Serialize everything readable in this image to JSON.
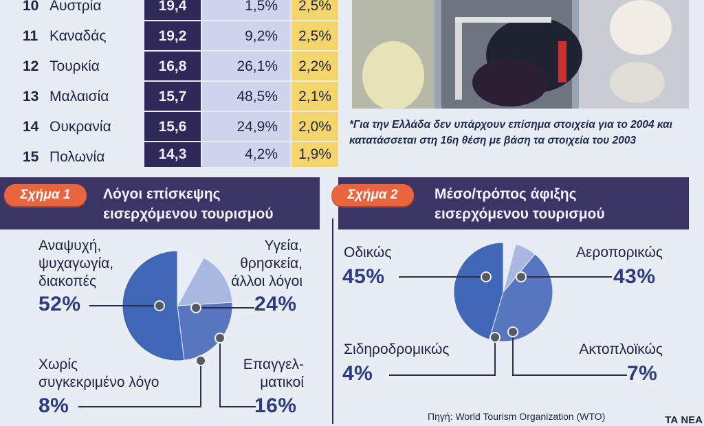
{
  "table": {
    "rows": [
      {
        "rank": "10",
        "country": "Αυστρία",
        "arrivals": "19,4",
        "change": "1,5%",
        "share": "2,5%"
      },
      {
        "rank": "11",
        "country": "Καναδάς",
        "arrivals": "19,2",
        "change": "9,2%",
        "share": "2,5%"
      },
      {
        "rank": "12",
        "country": "Τουρκία",
        "arrivals": "16,8",
        "change": "26,1%",
        "share": "2,2%"
      },
      {
        "rank": "13",
        "country": "Μαλαισία",
        "arrivals": "15,7",
        "change": "48,5%",
        "share": "2,1%"
      },
      {
        "rank": "14",
        "country": "Ουκρανία",
        "arrivals": "15,6",
        "change": "24,9%",
        "share": "2,0%"
      },
      {
        "rank": "15",
        "country": "Πολωνία",
        "arrivals": "14,3",
        "change": "4,2%",
        "share": "1,9%"
      }
    ],
    "colors": {
      "arrivals_bg": "#2d2a5a",
      "change_bg": "#cfd5ec",
      "share_bg": "#f4d56b"
    }
  },
  "photo_note": "*Για την Ελλάδα δεν υπάρχουν επίσημα στοιχεία για το 2004 και κατατάσσεται στη 16η θέση με βάση τα στοιχεία του 2003",
  "chart_data": [
    {
      "type": "pie",
      "badge": "Σχήμα 1",
      "title_line1": "Λόγοι επίσκεψης",
      "title_line2": "εισερχόμενου τουρισμού",
      "slices": [
        {
          "label_lines": [
            "Αναψυχή,",
            "ψυχαγωγία,",
            "διακοπές"
          ],
          "value": 52,
          "value_label": "52%",
          "color": "#3f67b6"
        },
        {
          "label_lines": [
            "Υγεία,",
            "θρησκεία,",
            "άλλοι λόγοι"
          ],
          "value": 24,
          "value_label": "24%",
          "color": "#5876c0"
        },
        {
          "label_lines": [
            "Επαγγελ-",
            "ματικοί"
          ],
          "value": 16,
          "value_label": "16%",
          "color": "#a9b8e0"
        },
        {
          "label_lines": [
            "Χωρίς",
            "συγκεκριμένο λόγο"
          ],
          "value": 8,
          "value_label": "8%",
          "color": "#e8edf7"
        }
      ]
    },
    {
      "type": "pie",
      "badge": "Σχήμα 2",
      "title_line1": "Μέσο/τρόπος άφιξης",
      "title_line2": "εισερχόμενου τουρισμού",
      "slices": [
        {
          "label_lines": [
            "Οδικώς"
          ],
          "value": 45,
          "value_label": "45%",
          "color": "#3f67b6"
        },
        {
          "label_lines": [
            "Αεροπορικώς"
          ],
          "value": 43,
          "value_label": "43%",
          "color": "#5876c0"
        },
        {
          "label_lines": [
            "Ακτοπλοϊκώς"
          ],
          "value": 7,
          "value_label": "7%",
          "color": "#a9b8e0"
        },
        {
          "label_lines": [
            "Σιδηροδρομικώς"
          ],
          "value": 4,
          "value_label": "4%",
          "color": "#e8edf7"
        }
      ]
    }
  ],
  "source": "Πηγή: World Tourism Organization (WTO)",
  "corner_text": "ΤΑ ΝΕΑ"
}
